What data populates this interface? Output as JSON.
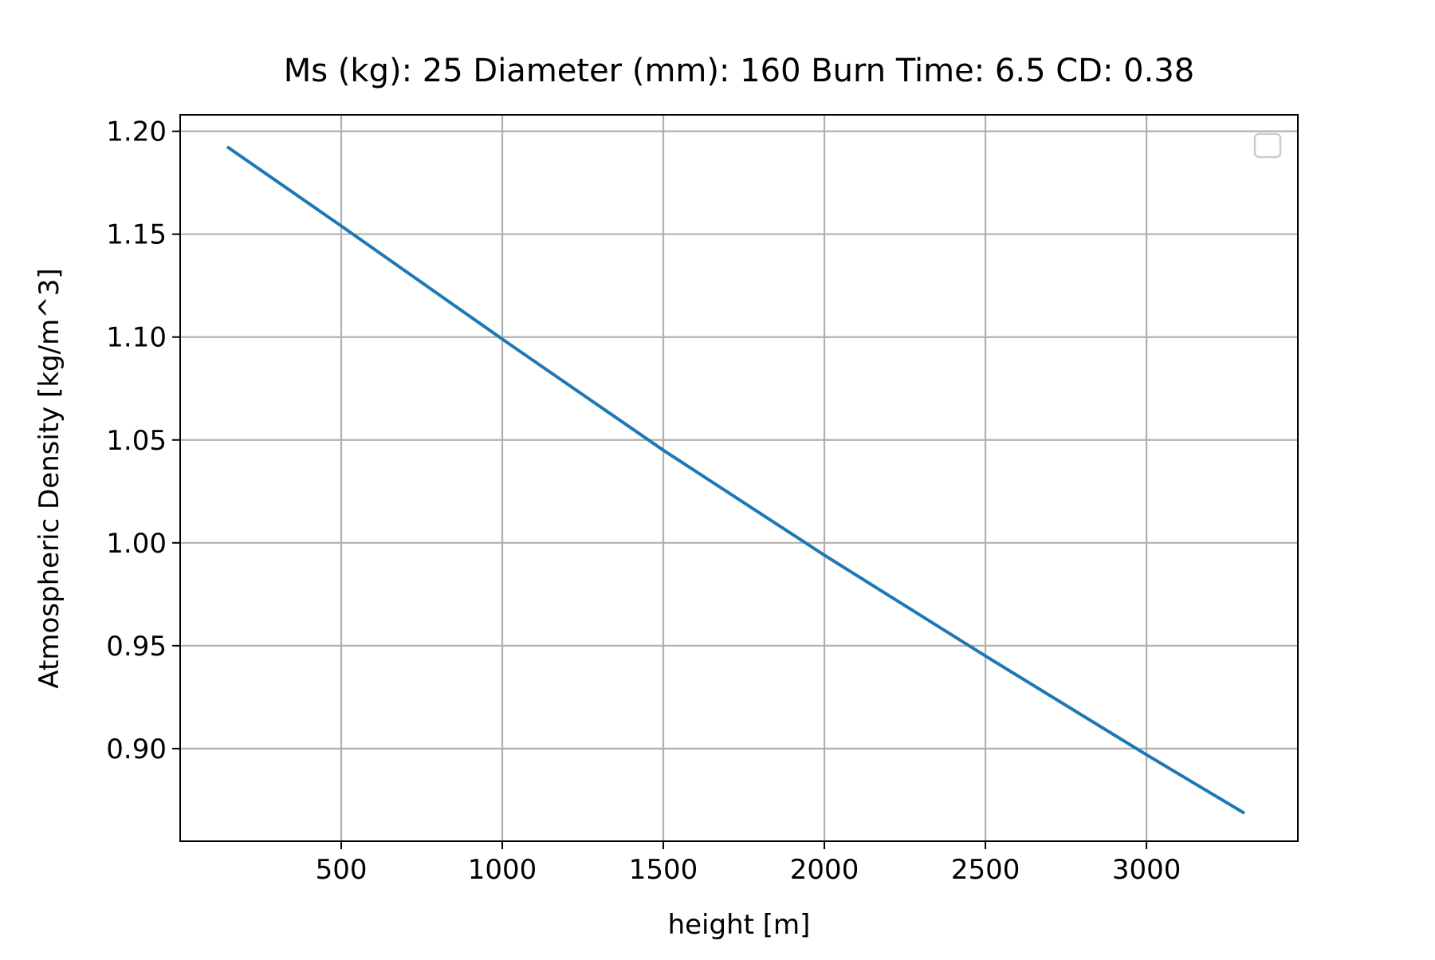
{
  "chart_data": {
    "type": "line",
    "title": "Ms (kg): 25 Diameter (mm): 160 Burn Time: 6.5 CD: 0.38",
    "xlabel": "height [m]",
    "ylabel": "Atmospheric Density [kg/m^3]",
    "xlim": [
      0,
      3470
    ],
    "ylim": [
      0.855,
      1.208
    ],
    "x_ticks": [
      500,
      1000,
      1500,
      2000,
      2500,
      3000
    ],
    "x_tick_labels": [
      "500",
      "1000",
      "1500",
      "2000",
      "2500",
      "3000"
    ],
    "y_ticks": [
      0.9,
      0.95,
      1.0,
      1.05,
      1.1,
      1.15,
      1.2
    ],
    "y_tick_labels": [
      "0.90",
      "0.95",
      "1.00",
      "1.05",
      "1.10",
      "1.15",
      "1.20"
    ],
    "grid": true,
    "legend": "top-right",
    "legend_entries": [],
    "series": [
      {
        "color": "#1f77b4",
        "x": [
          150,
          500,
          1000,
          1500,
          2000,
          2500,
          3000,
          3300
        ],
        "y": [
          1.192,
          1.154,
          1.099,
          1.045,
          0.994,
          0.945,
          0.897,
          0.869
        ]
      }
    ]
  }
}
